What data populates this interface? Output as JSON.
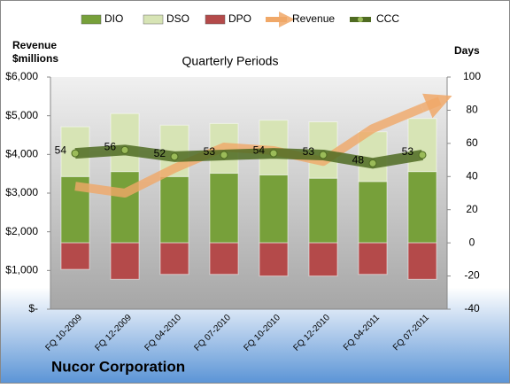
{
  "chart_data": {
    "type": "bar-line",
    "title": "Quarterly Periods",
    "footer": "Nucor Corporation",
    "y_label": [
      "Revenue",
      "$millions"
    ],
    "y2_label": "Days",
    "categories": [
      "FQ 10-2009",
      "FQ 12-2009",
      "FQ 04-2010",
      "FQ 07-2010",
      "FQ 10-2010",
      "FQ 12-2010",
      "FQ 04-2011",
      "FQ 07-2011"
    ],
    "series": [
      {
        "name": "DIO",
        "color": "#77a03a",
        "kind": "bar",
        "axis": "y2",
        "values": [
          40,
          43,
          40,
          42,
          41,
          39,
          37,
          43
        ]
      },
      {
        "name": "DSO",
        "color": "#d7e4b5",
        "kind": "bar",
        "axis": "y2",
        "values": [
          30,
          35,
          31,
          30,
          33,
          34,
          30,
          32
        ]
      },
      {
        "name": "DPO",
        "color": "#b44a4a",
        "kind": "bar",
        "axis": "y2",
        "values": [
          -16,
          -22,
          -19,
          -19,
          -20,
          -20,
          -19,
          -22
        ]
      },
      {
        "name": "Revenue",
        "color": "#f0a868",
        "kind": "line",
        "values": [
          3180,
          3000,
          3640,
          4190,
          4100,
          3820,
          4670,
          5200
        ]
      },
      {
        "name": "CCC",
        "color": "#4f6b22",
        "kind": "line",
        "axis": "y2",
        "values": [
          54,
          56,
          52,
          53,
          54,
          53,
          48,
          53
        ]
      }
    ],
    "ylim": [
      0,
      6000
    ],
    "yticks": [
      {
        "value": 0,
        "label": "$-"
      },
      {
        "value": 1000,
        "label": "$1,000"
      },
      {
        "value": 2000,
        "label": "$2,000"
      },
      {
        "value": 3000,
        "label": "$3,000"
      },
      {
        "value": 4000,
        "label": "$4,000"
      },
      {
        "value": 5000,
        "label": "$5,000"
      },
      {
        "value": 6000,
        "label": "$6,000"
      }
    ],
    "y2lim": [
      -40,
      100
    ],
    "y2ticks": [
      -40,
      -20,
      0,
      20,
      40,
      60,
      80,
      100
    ],
    "grid": true
  }
}
